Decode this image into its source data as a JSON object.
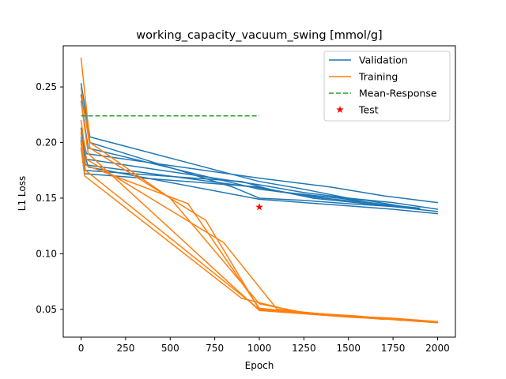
{
  "chart_data": {
    "type": "line",
    "title": "working_capacity_vacuum_swing [mmol/g]",
    "xlabel": "Epoch",
    "ylabel": "L1 Loss",
    "xlim": [
      -100,
      2100
    ],
    "ylim": [
      0.025,
      0.287
    ],
    "xticks": [
      0,
      250,
      500,
      750,
      1000,
      1250,
      1500,
      1750,
      2000
    ],
    "yticks": [
      0.05,
      0.1,
      0.15,
      0.2,
      0.25
    ],
    "ytick_labels": [
      "0.05",
      "0.10",
      "0.15",
      "0.20",
      "0.25"
    ],
    "grid": false,
    "legend_position": "top-right",
    "colors": {
      "validation": "#1f77b4",
      "training": "#ff7f0e",
      "mean_response": "#2ca02c",
      "test": "#ff0000"
    },
    "series": [
      {
        "name": "Validation",
        "style": "line",
        "note_runs": "many overlapping training runs; representative runs listed",
        "runs": [
          {
            "x": [
              0,
              50,
              1000,
              1250,
              1500,
              1750,
              2000
            ],
            "y": [
              0.253,
              0.205,
              0.165,
              0.158,
              0.15,
              0.146,
              0.14
            ]
          },
          {
            "x": [
              0,
              50,
              850,
              1000,
              1250,
              1500,
              1800
            ],
            "y": [
              0.243,
              0.2,
              0.16,
              0.15,
              0.148,
              0.145,
              0.142
            ]
          },
          {
            "x": [
              0,
              40,
              1000,
              1300,
              1600,
              1900
            ],
            "y": [
              0.237,
              0.195,
              0.158,
              0.152,
              0.148,
              0.14
            ]
          },
          {
            "x": [
              0,
              30,
              1000,
              1400,
              1700,
              2000
            ],
            "y": [
              0.213,
              0.19,
              0.168,
              0.16,
              0.152,
              0.146
            ]
          },
          {
            "x": [
              0,
              30,
              1000,
              1250,
              1550
            ],
            "y": [
              0.208,
              0.185,
              0.162,
              0.155,
              0.149
            ]
          },
          {
            "x": [
              0,
              20,
              900,
              1100,
              1450,
              1750
            ],
            "y": [
              0.2,
              0.175,
              0.165,
              0.156,
              0.15,
              0.143
            ]
          },
          {
            "x": [
              0,
              20,
              1000,
              1300,
              1600,
              2000
            ],
            "y": [
              0.195,
              0.172,
              0.16,
              0.15,
              0.145,
              0.138
            ]
          },
          {
            "x": [
              0,
              25,
              1050,
              1300,
              1600,
              1900
            ],
            "y": [
              0.205,
              0.18,
              0.158,
              0.151,
              0.146,
              0.141
            ]
          },
          {
            "x": [
              0,
              40,
              1000,
              1250,
              1500,
              1750,
              2000
            ],
            "y": [
              0.202,
              0.178,
              0.149,
              0.146,
              0.143,
              0.14,
              0.136
            ]
          }
        ]
      },
      {
        "name": "Training",
        "style": "line",
        "note_runs": "many overlapping training runs; representative runs listed",
        "runs": [
          {
            "x": [
              0,
              50,
              500,
              1000,
              1250,
              1500,
              1750,
              2000
            ],
            "y": [
              0.276,
              0.2,
              0.15,
              0.055,
              0.047,
              0.044,
              0.042,
              0.039
            ]
          },
          {
            "x": [
              0,
              50,
              700,
              1000,
              1300,
              1600,
              1900
            ],
            "y": [
              0.249,
              0.195,
              0.13,
              0.05,
              0.046,
              0.043,
              0.04
            ]
          },
          {
            "x": [
              0,
              40,
              1000,
              1250,
              1500,
              1750,
              2000
            ],
            "y": [
              0.237,
              0.19,
              0.049,
              0.046,
              0.043,
              0.041,
              0.038
            ]
          },
          {
            "x": [
              0,
              30,
              800,
              1100,
              1400,
              1700
            ],
            "y": [
              0.22,
              0.185,
              0.11,
              0.05,
              0.045,
              0.041
            ]
          },
          {
            "x": [
              0,
              20,
              600,
              1000,
              1300,
              1600,
              2000
            ],
            "y": [
              0.21,
              0.18,
              0.145,
              0.051,
              0.046,
              0.043,
              0.038
            ]
          },
          {
            "x": [
              0,
              25,
              1000,
              1250,
              1550,
              1800
            ],
            "y": [
              0.2,
              0.175,
              0.05,
              0.047,
              0.044,
              0.04
            ]
          },
          {
            "x": [
              0,
              20,
              900,
              1200,
              1500,
              1900
            ],
            "y": [
              0.195,
              0.17,
              0.06,
              0.048,
              0.044,
              0.039
            ]
          }
        ]
      },
      {
        "name": "Mean-Response",
        "style": "dashed",
        "x": [
          0,
          1000
        ],
        "y": [
          0.224,
          0.224
        ]
      },
      {
        "name": "Test",
        "style": "marker-star",
        "x": [
          1000
        ],
        "y": [
          0.142
        ]
      }
    ]
  },
  "legend": {
    "items": [
      "Validation",
      "Training",
      "Mean-Response",
      "Test"
    ]
  }
}
